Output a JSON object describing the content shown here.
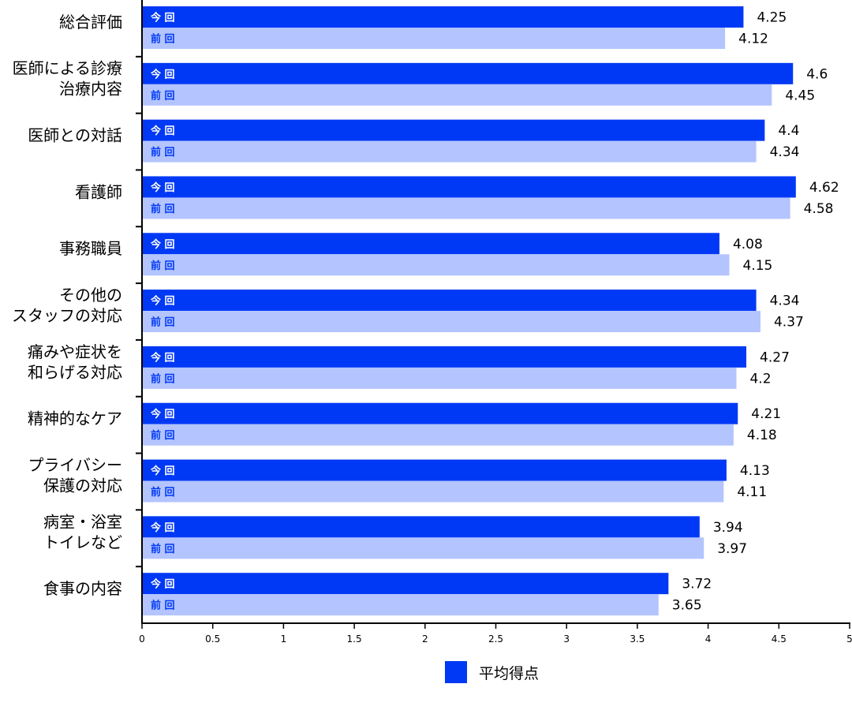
{
  "chart_data": {
    "type": "bar",
    "orientation": "horizontal",
    "categories": [
      [
        "総合評価"
      ],
      [
        "医師による診療",
        "治療内容"
      ],
      [
        "医師との対話"
      ],
      [
        "看護師"
      ],
      [
        "事務職員"
      ],
      [
        "その他の",
        "スタッフの対応"
      ],
      [
        "痛みや症状を",
        "和らげる対応"
      ],
      [
        "精神的なケア"
      ],
      [
        "プライバシー",
        "保護の対応"
      ],
      [
        "病室・浴室",
        "トイレなど"
      ],
      [
        "食事の内容"
      ]
    ],
    "series": [
      {
        "tag": "今回",
        "color": "#0039f5",
        "values": [
          4.25,
          4.6,
          4.4,
          4.62,
          4.08,
          4.34,
          4.27,
          4.21,
          4.13,
          3.94,
          3.72
        ],
        "labels": [
          "4.25",
          "4.6",
          "4.4",
          "4.62",
          "4.08",
          "4.34",
          "4.27",
          "4.21",
          "4.13",
          "3.94",
          "3.72"
        ]
      },
      {
        "tag": "前回",
        "color": "#b3c4ff",
        "values": [
          4.12,
          4.45,
          4.34,
          4.58,
          4.15,
          4.37,
          4.2,
          4.18,
          4.11,
          3.97,
          3.65
        ],
        "labels": [
          "4.12",
          "4.45",
          "4.34",
          "4.58",
          "4.15",
          "4.37",
          "4.2",
          "4.18",
          "4.11",
          "3.97",
          "3.65"
        ]
      }
    ],
    "xlim": [
      0,
      5
    ],
    "xticks": [
      "0",
      "0.5",
      "1",
      "1.5",
      "2",
      "2.5",
      "3",
      "3.5",
      "4",
      "4.5",
      "5"
    ],
    "legend": {
      "label": "平均得点",
      "color": "#0039f5",
      "placement": "bottom-center"
    },
    "grid": false
  }
}
